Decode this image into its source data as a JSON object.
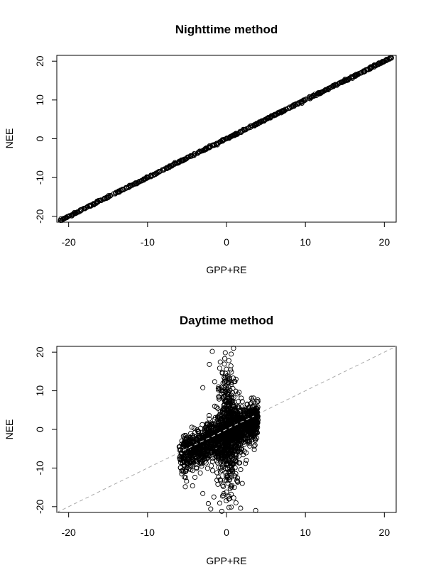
{
  "chart_data": [
    {
      "type": "scatter",
      "title": "Nighttime method",
      "xlabel": "GPP+RE",
      "ylabel": "NEE",
      "xlim": [
        -21.5,
        21.5
      ],
      "ylim": [
        -21.5,
        21.5
      ],
      "xticks": [
        -20,
        -10,
        0,
        10,
        20
      ],
      "yticks": [
        -20,
        -10,
        0,
        10,
        20
      ],
      "grid": false,
      "relationship": "points lie on the line NEE = GPP+RE",
      "points": [
        [
          -21.0,
          -21.0
        ],
        [
          -20.4,
          -20.4
        ],
        [
          -19.6,
          -19.6
        ],
        [
          -18.9,
          -18.9
        ],
        [
          -18.0,
          -18.0
        ],
        [
          -17.2,
          -17.2
        ],
        [
          -16.3,
          -16.3
        ],
        [
          -15.5,
          -15.5
        ],
        [
          -14.7,
          -14.7
        ],
        [
          -14.0,
          -14.0
        ],
        [
          -13.2,
          -13.2
        ],
        [
          -12.4,
          -12.4
        ],
        [
          -11.6,
          -11.6
        ],
        [
          -10.8,
          -10.8
        ],
        [
          -10.0,
          -10.0
        ],
        [
          -9.2,
          -9.2
        ],
        [
          -8.4,
          -8.4
        ],
        [
          -7.6,
          -7.6
        ],
        [
          -6.8,
          -6.8
        ],
        [
          -6.0,
          -6.0
        ],
        [
          -5.2,
          -5.2
        ],
        [
          -4.4,
          -4.4
        ],
        [
          -3.6,
          -3.6
        ],
        [
          -2.8,
          -2.8
        ],
        [
          -2.0,
          -2.0
        ],
        [
          -1.2,
          -1.2
        ],
        [
          -0.4,
          -0.4
        ],
        [
          0.4,
          0.4
        ],
        [
          1.2,
          1.2
        ],
        [
          2.0,
          2.0
        ],
        [
          2.8,
          2.8
        ],
        [
          3.6,
          3.6
        ],
        [
          4.4,
          4.4
        ],
        [
          5.2,
          5.2
        ],
        [
          6.0,
          6.0
        ],
        [
          6.8,
          6.8
        ],
        [
          7.6,
          7.6
        ],
        [
          8.4,
          8.4
        ],
        [
          9.2,
          9.2
        ],
        [
          10.0,
          10.0
        ],
        [
          10.8,
          10.8
        ],
        [
          11.6,
          11.6
        ],
        [
          12.4,
          12.4
        ],
        [
          13.3,
          13.3
        ],
        [
          14.2,
          14.2
        ],
        [
          15.0,
          15.0
        ],
        [
          16.0,
          16.0
        ],
        [
          17.1,
          17.1
        ],
        [
          18.2,
          18.2
        ],
        [
          19.2,
          19.2
        ],
        [
          20.0,
          20.0
        ],
        [
          20.9,
          20.9
        ]
      ]
    },
    {
      "type": "scatter",
      "title": "Daytime method",
      "xlabel": "GPP+RE",
      "ylabel": "NEE",
      "xlim": [
        -21.5,
        21.5
      ],
      "ylim": [
        -21.5,
        21.5
      ],
      "xticks": [
        -20,
        -10,
        0,
        10,
        20
      ],
      "yticks": [
        -20,
        -10,
        0,
        10,
        20
      ],
      "grid": false,
      "reference_line": {
        "from": [
          -21.5,
          -21.5
        ],
        "to": [
          21.5,
          21.5
        ],
        "style": "dashed",
        "color": "#a9a9a9"
      },
      "point_cloud": {
        "x_range": [
          -6,
          4
        ],
        "y_range": [
          -21,
          21
        ],
        "core_trend": "NEE rises with GPP+RE, roughly NEE = 0.9*(GPP+RE) - 1.5"
      },
      "points": [
        [
          -6.0,
          -4.5
        ],
        [
          -5.8,
          -5.3
        ],
        [
          -5.6,
          -6.2
        ],
        [
          -5.4,
          -3.8
        ],
        [
          -5.2,
          -7.4
        ],
        [
          -5.0,
          -4.8
        ],
        [
          -4.8,
          -5.9
        ],
        [
          -4.6,
          -6.6
        ],
        [
          -4.4,
          -3.4
        ],
        [
          -4.2,
          -7.9
        ],
        [
          -4.0,
          -5.2
        ],
        [
          -3.8,
          -2.6
        ],
        [
          -3.6,
          -6.8
        ],
        [
          -3.4,
          -4.1
        ],
        [
          -3.2,
          -8.5
        ],
        [
          -3.0,
          -3.0
        ],
        [
          -2.8,
          -5.7
        ],
        [
          -2.6,
          -1.9
        ],
        [
          -2.4,
          -7.2
        ],
        [
          -2.2,
          -2.8
        ],
        [
          -2.0,
          -4.9
        ],
        [
          -1.8,
          -1.2
        ],
        [
          -1.6,
          -6.1
        ],
        [
          -1.4,
          -0.6
        ],
        [
          -1.2,
          -3.4
        ],
        [
          -1.0,
          -9.8
        ],
        [
          -0.8,
          -1.5
        ],
        [
          -0.6,
          -5.2
        ],
        [
          -0.4,
          0.8
        ],
        [
          -0.2,
          -2.4
        ],
        [
          0.0,
          -0.6
        ],
        [
          0.2,
          -4.3
        ],
        [
          0.4,
          1.5
        ],
        [
          0.6,
          -1.8
        ],
        [
          0.8,
          0.2
        ],
        [
          1.0,
          -3.1
        ],
        [
          1.2,
          2.4
        ],
        [
          1.4,
          -0.9
        ],
        [
          1.6,
          1.1
        ],
        [
          1.8,
          3.0
        ],
        [
          2.0,
          -0.3
        ],
        [
          2.2,
          1.8
        ],
        [
          2.4,
          0.4
        ],
        [
          2.6,
          2.8
        ],
        [
          2.8,
          1.2
        ],
        [
          3.0,
          -0.1
        ],
        [
          3.2,
          2.1
        ],
        [
          3.4,
          3.6
        ],
        [
          3.6,
          1.6
        ],
        [
          3.8,
          0.6
        ],
        [
          -1.5,
          6.0
        ],
        [
          -1.0,
          8.5
        ],
        [
          -0.6,
          11.0
        ],
        [
          -0.3,
          13.4
        ],
        [
          0.0,
          15.6
        ],
        [
          0.3,
          17.8
        ],
        [
          0.6,
          19.5
        ],
        [
          0.9,
          21.0
        ],
        [
          -1.8,
          20.2
        ],
        [
          -3.0,
          10.8
        ],
        [
          1.2,
          13.0
        ],
        [
          1.6,
          9.6
        ],
        [
          2.0,
          7.2
        ],
        [
          -0.8,
          4.6
        ],
        [
          0.4,
          5.5
        ],
        [
          -2.2,
          3.6
        ],
        [
          -1.2,
          -11.2
        ],
        [
          -0.8,
          -13.0
        ],
        [
          -0.4,
          -14.8
        ],
        [
          0.0,
          -16.2
        ],
        [
          0.3,
          -18.0
        ],
        [
          0.6,
          -20.1
        ],
        [
          1.0,
          -15.0
        ],
        [
          1.4,
          -12.6
        ],
        [
          1.8,
          -10.4
        ],
        [
          2.4,
          -8.8
        ],
        [
          -1.6,
          -17.5
        ],
        [
          -2.3,
          -19.2
        ],
        [
          -3.0,
          -16.6
        ],
        [
          -4.0,
          -12.4
        ],
        [
          -4.3,
          -14.6
        ],
        [
          -2.0,
          -20.6
        ],
        [
          3.7,
          -21.0
        ],
        [
          -0.6,
          -21.2
        ],
        [
          2.0,
          -14.0
        ],
        [
          1.2,
          -19.0
        ]
      ]
    }
  ]
}
